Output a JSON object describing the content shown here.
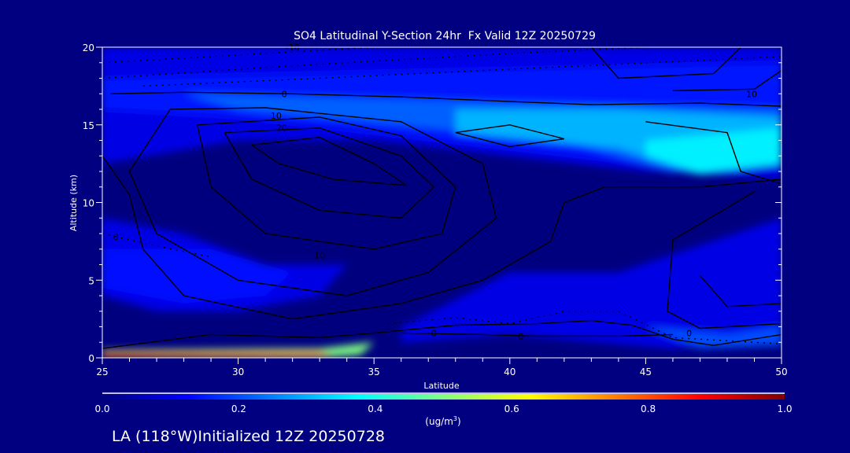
{
  "chart_data": {
    "type": "heatmap",
    "title": "SO4 Latitudinal Y-Section 24hr  Fx Valid 12Z 20250729",
    "xlabel": "Latitude",
    "ylabel": "Altitude (km)",
    "xlim": [
      25,
      50
    ],
    "ylim": [
      0,
      20
    ],
    "xticks": [
      25,
      30,
      35,
      40,
      45,
      50
    ],
    "yticks": [
      0,
      5,
      10,
      15,
      20
    ],
    "xtick_labels": [
      "25",
      "30",
      "35",
      "40",
      "45",
      "50"
    ],
    "ytick_labels": [
      "0",
      "5",
      "10",
      "15",
      "20"
    ],
    "colorbar": {
      "label_prefix": "(ug/m",
      "label_sup": "3",
      "label_suffix": ")",
      "range": [
        0.0,
        1.0
      ],
      "ticks": [
        "0.0",
        "0.2",
        "0.4",
        "0.6",
        "0.8",
        "1.0"
      ],
      "colormap": [
        "#00007f",
        "#0000ff",
        "#00ffff",
        "#ffff00",
        "#ff0000",
        "#7f0000"
      ]
    },
    "filled_regions": [
      {
        "value": 0.1,
        "points": [
          [
            25,
            20
          ],
          [
            50,
            20
          ],
          [
            50,
            11.5
          ],
          [
            45,
            12
          ],
          [
            40,
            13
          ],
          [
            35,
            14
          ],
          [
            30,
            14
          ],
          [
            25,
            12.5
          ]
        ]
      },
      {
        "value": 0.15,
        "points": [
          [
            25,
            18
          ],
          [
            50,
            19
          ],
          [
            50,
            13
          ],
          [
            45,
            12.5
          ],
          [
            40,
            13.5
          ],
          [
            35,
            14.5
          ],
          [
            30,
            15.5
          ],
          [
            25,
            16
          ]
        ]
      },
      {
        "value": 0.22,
        "points": [
          [
            28,
            17
          ],
          [
            50,
            16
          ],
          [
            50,
            13
          ],
          [
            46,
            12
          ],
          [
            42,
            14
          ],
          [
            36,
            15
          ],
          [
            30,
            16
          ]
        ]
      },
      {
        "value": 0.3,
        "points": [
          [
            38,
            16
          ],
          [
            44,
            16
          ],
          [
            50,
            15.5
          ],
          [
            50,
            13
          ],
          [
            47,
            11.8
          ],
          [
            44,
            13.5
          ],
          [
            38,
            14.5
          ]
        ]
      },
      {
        "value": 0.36,
        "points": [
          [
            45,
            14
          ],
          [
            50,
            14.8
          ],
          [
            50,
            12.5
          ],
          [
            47,
            11.9
          ],
          [
            45,
            13
          ]
        ]
      },
      {
        "value": 0.1,
        "points": [
          [
            25,
            9
          ],
          [
            28,
            8
          ],
          [
            31,
            6
          ],
          [
            34,
            6
          ],
          [
            33,
            4
          ],
          [
            30,
            3
          ],
          [
            27,
            3
          ],
          [
            25,
            4
          ]
        ]
      },
      {
        "value": 0.14,
        "points": [
          [
            25,
            7
          ],
          [
            29,
            7
          ],
          [
            32,
            5.5
          ],
          [
            31,
            4
          ],
          [
            28,
            3.5
          ],
          [
            25,
            4.5
          ]
        ]
      },
      {
        "value": 0.1,
        "points": [
          [
            36,
            2
          ],
          [
            40,
            5.5
          ],
          [
            44,
            5.5
          ],
          [
            50,
            9
          ],
          [
            50,
            1
          ],
          [
            46,
            0.6
          ],
          [
            40,
            1.5
          ],
          [
            36,
            1
          ]
        ]
      },
      {
        "value": 0.2,
        "points": [
          [
            45,
            2
          ],
          [
            48,
            1.5
          ],
          [
            50,
            2
          ],
          [
            50,
            0.8
          ],
          [
            47,
            0.6
          ]
        ]
      },
      {
        "value": 0.5,
        "points": [
          [
            25,
            0.5
          ],
          [
            33,
            0.6
          ],
          [
            35,
            1
          ],
          [
            34.5,
            0.2
          ],
          [
            33,
            0
          ],
          [
            25,
            0
          ]
        ]
      },
      {
        "value": 0.8,
        "points": [
          [
            25,
            0.4
          ],
          [
            33,
            0.4
          ],
          [
            33.5,
            0.1
          ],
          [
            25,
            0
          ]
        ]
      },
      {
        "value": 0.95,
        "points": [
          [
            25,
            0.3
          ],
          [
            32,
            0.2
          ],
          [
            25,
            0.05
          ]
        ]
      }
    ],
    "contours_solid": [
      [
        [
          25.3,
          17
        ],
        [
          28,
          17.1
        ],
        [
          32,
          17
        ],
        [
          36,
          16.8
        ],
        [
          40,
          16.5
        ],
        [
          43,
          16.3
        ],
        [
          47,
          16.4
        ],
        [
          50,
          16.2
        ]
      ],
      [
        [
          27.5,
          16
        ],
        [
          31,
          16.1
        ],
        [
          36,
          15.2
        ],
        [
          39,
          12.5
        ],
        [
          39.5,
          9
        ],
        [
          37,
          5.5
        ],
        [
          34,
          4
        ],
        [
          30,
          5
        ],
        [
          27,
          8
        ],
        [
          26,
          12
        ],
        [
          27.5,
          16
        ]
      ],
      [
        [
          28.5,
          15
        ],
        [
          33,
          15.5
        ],
        [
          36,
          14.3
        ],
        [
          38,
          11
        ],
        [
          37.5,
          8
        ],
        [
          35,
          7
        ],
        [
          31,
          8
        ],
        [
          29,
          11
        ],
        [
          28.5,
          15
        ]
      ],
      [
        [
          29.5,
          14.5
        ],
        [
          33,
          14.8
        ],
        [
          36,
          13
        ],
        [
          37.2,
          11
        ],
        [
          36,
          9
        ],
        [
          33,
          9.5
        ],
        [
          30.5,
          11.5
        ],
        [
          29.5,
          14.5
        ]
      ],
      [
        [
          30.5,
          13.7
        ],
        [
          33,
          14.2
        ],
        [
          35,
          12.5
        ],
        [
          36.2,
          11.1
        ],
        [
          33.5,
          11.5
        ],
        [
          31.5,
          12.5
        ],
        [
          30.5,
          13.7
        ]
      ],
      [
        [
          25,
          13
        ],
        [
          26,
          10.5
        ],
        [
          26.5,
          7
        ],
        [
          28,
          4
        ],
        [
          32,
          2.5
        ],
        [
          36,
          3.5
        ],
        [
          39,
          5
        ],
        [
          41.5,
          7.5
        ],
        [
          42,
          10
        ],
        [
          43.5,
          11
        ],
        [
          47,
          11
        ],
        [
          50,
          11.5
        ]
      ],
      [
        [
          38,
          14.5
        ],
        [
          40,
          15
        ],
        [
          42,
          14.1
        ],
        [
          40,
          13.6
        ],
        [
          38,
          14.5
        ]
      ],
      [
        [
          46,
          17.2
        ],
        [
          49,
          17.3
        ],
        [
          50,
          18.5
        ]
      ],
      [
        [
          45,
          15.2
        ],
        [
          48,
          14.5
        ],
        [
          48.5,
          12
        ],
        [
          50,
          11.2
        ]
      ],
      [
        [
          48.5,
          20
        ],
        [
          47.5,
          18.3
        ],
        [
          44,
          18
        ],
        [
          43,
          20
        ]
      ],
      [
        [
          47,
          5.3
        ],
        [
          48,
          3.3
        ],
        [
          50,
          3.5
        ]
      ],
      [
        [
          49,
          10.7
        ],
        [
          46,
          7.6
        ],
        [
          45.8,
          3
        ],
        [
          47,
          1.9
        ],
        [
          50,
          2.2
        ]
      ],
      [
        [
          25,
          0.6
        ],
        [
          29,
          1.5
        ],
        [
          33,
          1.3
        ],
        [
          35,
          1.6
        ],
        [
          38,
          2.1
        ],
        [
          41,
          2.2
        ],
        [
          43,
          2.4
        ],
        [
          44.5,
          2.1
        ],
        [
          46,
          1.2
        ],
        [
          47.5,
          0.8
        ],
        [
          50,
          1.5
        ]
      ],
      [
        [
          36,
          1.6
        ],
        [
          39,
          1.5
        ],
        [
          41,
          1.4
        ],
        [
          44,
          1.4
        ],
        [
          46,
          1.5
        ]
      ]
    ],
    "contours_dashed": [
      [
        [
          25,
          19
        ],
        [
          30,
          19.5
        ],
        [
          35,
          20
        ]
      ],
      [
        [
          25,
          18
        ],
        [
          32,
          18.8
        ],
        [
          40,
          19.6
        ],
        [
          45,
          20
        ]
      ],
      [
        [
          26.5,
          17.5
        ],
        [
          33,
          18
        ],
        [
          39,
          18.5
        ],
        [
          50,
          19.4
        ]
      ],
      [
        [
          25,
          8
        ],
        [
          27,
          7.2
        ],
        [
          29,
          6.5
        ]
      ],
      [
        [
          35.5,
          2.2
        ],
        [
          38,
          2.6
        ],
        [
          40,
          2.2
        ],
        [
          42,
          3
        ],
        [
          44,
          3
        ],
        [
          46,
          1.3
        ],
        [
          50,
          0.9
        ]
      ]
    ],
    "contour_labels": [
      {
        "text": "-10",
        "lat": 32.0,
        "alt": 20.0
      },
      {
        "text": "0",
        "lat": 31.7,
        "alt": 17.0
      },
      {
        "text": "10",
        "lat": 31.4,
        "alt": 15.6
      },
      {
        "text": "20",
        "lat": 31.6,
        "alt": 14.8
      },
      {
        "text": "10",
        "lat": 48.9,
        "alt": 17.0
      },
      {
        "text": "0",
        "lat": 37.2,
        "alt": 1.6
      },
      {
        "text": "0",
        "lat": 40.4,
        "alt": 1.4
      },
      {
        "text": "0",
        "lat": 46.6,
        "alt": 1.6
      },
      {
        "text": "10",
        "lat": 33.0,
        "alt": 6.6
      },
      {
        "text": "0",
        "lat": 25.5,
        "alt": 7.8
      }
    ]
  },
  "footer": {
    "location_label": "LA (118°W)Initialized 12Z 20250728"
  }
}
